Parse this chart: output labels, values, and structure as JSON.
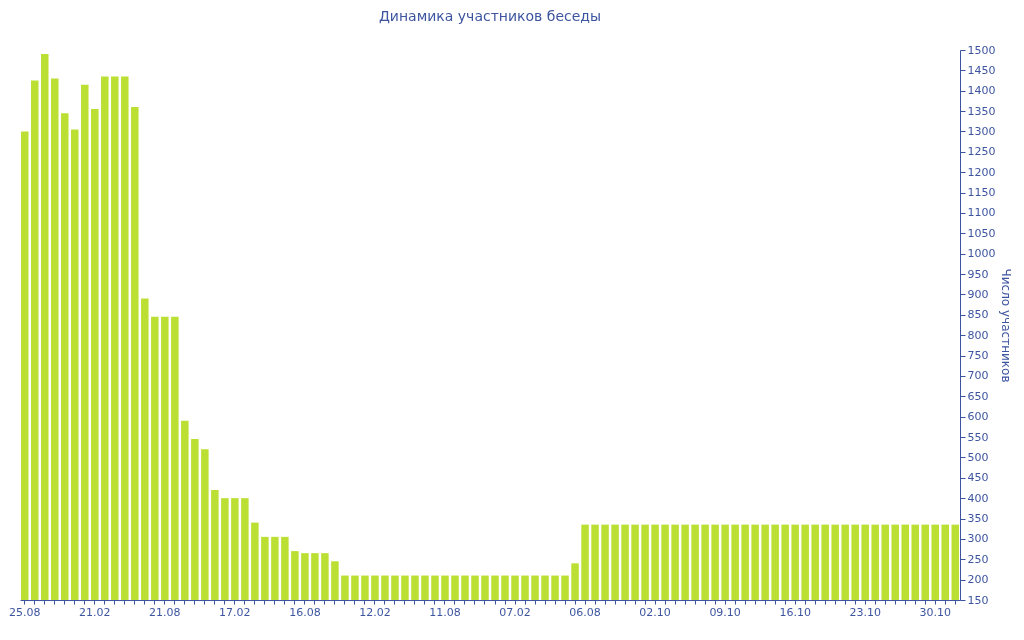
{
  "chart_data": {
    "type": "bar",
    "title": "Динамика участников беседы",
    "ylabel": "Число участников",
    "categories": [
      "25.08",
      null,
      null,
      null,
      null,
      null,
      null,
      "21.02",
      null,
      null,
      null,
      null,
      null,
      null,
      "21.08",
      null,
      null,
      null,
      null,
      null,
      null,
      "17.02",
      null,
      null,
      null,
      null,
      null,
      null,
      "16.08",
      null,
      null,
      null,
      null,
      null,
      null,
      "12.02",
      null,
      null,
      null,
      null,
      null,
      null,
      "11.08",
      null,
      null,
      null,
      null,
      null,
      null,
      "07.02",
      null,
      null,
      null,
      null,
      null,
      null,
      "06.08",
      null,
      null,
      null,
      null,
      null,
      null,
      "02.10",
      null,
      null,
      null,
      null,
      null,
      null,
      "09.10",
      null,
      null,
      null,
      null,
      null,
      null,
      "16.10",
      null,
      null,
      null,
      null,
      null,
      null,
      "23.10",
      null,
      null,
      null,
      null,
      null,
      null,
      "30.10",
      null,
      null
    ],
    "values": [
      1300,
      1425,
      1490,
      1430,
      1345,
      1305,
      1415,
      1355,
      1435,
      1435,
      1435,
      1360,
      890,
      845,
      845,
      845,
      590,
      545,
      520,
      420,
      400,
      400,
      400,
      340,
      305,
      305,
      305,
      270,
      265,
      265,
      265,
      245,
      210,
      210,
      210,
      210,
      210,
      210,
      210,
      210,
      210,
      210,
      210,
      210,
      210,
      210,
      210,
      210,
      210,
      210,
      210,
      210,
      210,
      210,
      210,
      240,
      335,
      335,
      335,
      335,
      335,
      335,
      335,
      335,
      335,
      335,
      335,
      335,
      335,
      335,
      335,
      335,
      335,
      335,
      335,
      335,
      335,
      335,
      335,
      335,
      335,
      335,
      335,
      335,
      335,
      335,
      335,
      335,
      335,
      335,
      335,
      335,
      335,
      335
    ],
    "color": "#bbe033",
    "ylim": [
      150,
      1500
    ],
    "yticks": [
      150,
      200,
      250,
      300,
      350,
      400,
      450,
      500,
      550,
      600,
      650,
      700,
      750,
      800,
      850,
      900,
      950,
      1000,
      1050,
      1100,
      1150,
      1200,
      1250,
      1300,
      1350,
      1400,
      1450,
      1500
    ]
  }
}
